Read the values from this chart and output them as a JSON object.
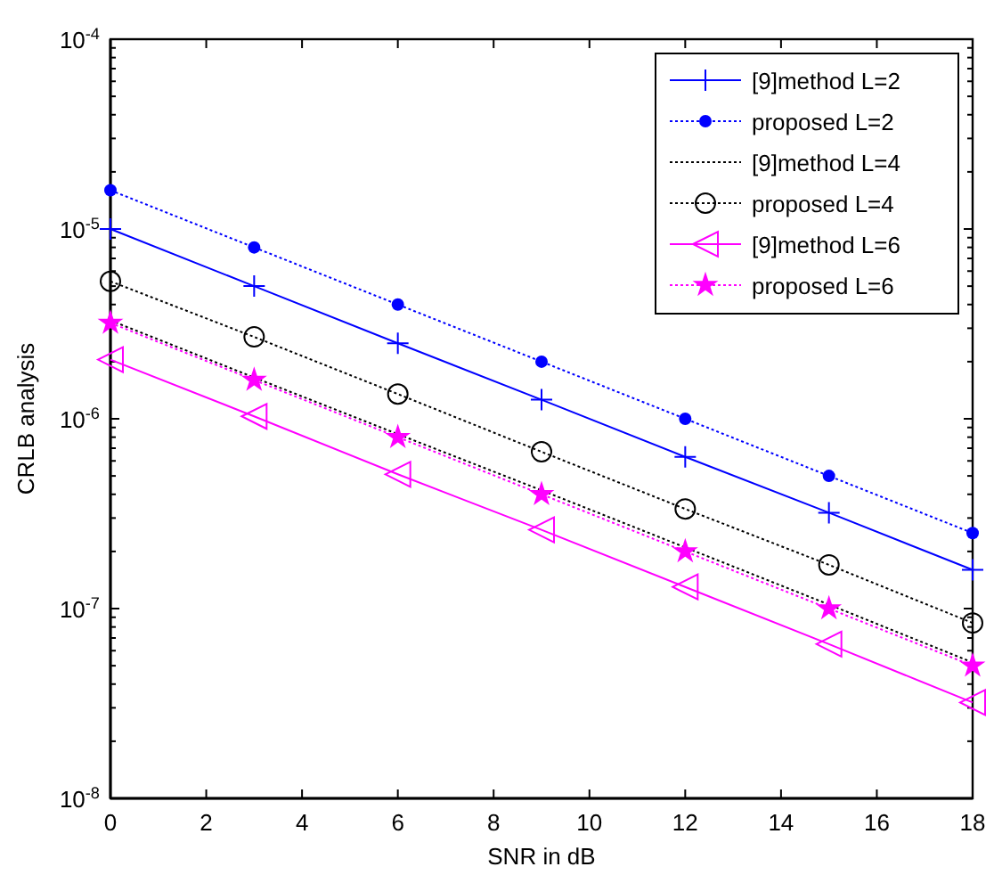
{
  "chart_data": {
    "type": "line",
    "xlabel": "SNR in dB",
    "ylabel": "CRLB analysis",
    "log": "y",
    "grid": false,
    "legend": "top right",
    "x": [
      0,
      3,
      6,
      9,
      12,
      15,
      18
    ],
    "xlim": [
      0,
      18
    ],
    "xticks": [
      0,
      2,
      4,
      6,
      8,
      10,
      12,
      14,
      16,
      18
    ],
    "ylim": [
      1e-08,
      0.0001
    ],
    "yticks": [
      {
        "value": 1e-08,
        "label": "10$^{-8}$"
      },
      {
        "value": 2e-08,
        "label": null
      },
      {
        "value": 3e-08,
        "label": null
      },
      {
        "value": 4e-08,
        "label": null
      },
      {
        "value": 5e-08,
        "label": null
      },
      {
        "value": 6e-08,
        "label": null
      },
      {
        "value": 7e-08,
        "label": null
      },
      {
        "value": 8e-08,
        "label": null
      },
      {
        "value": 9e-08,
        "label": null
      },
      {
        "value": 1e-07,
        "label": "10$^{-7}$"
      },
      {
        "value": 2e-07,
        "label": null
      },
      {
        "value": 3e-07,
        "label": null
      },
      {
        "value": 4e-07,
        "label": null
      },
      {
        "value": 5e-07,
        "label": null
      },
      {
        "value": 6e-07,
        "label": null
      },
      {
        "value": 7e-07,
        "label": null
      },
      {
        "value": 8e-07,
        "label": null
      },
      {
        "value": 9e-07,
        "label": null
      },
      {
        "value": 1e-06,
        "label": "10$^{-6}$"
      },
      {
        "value": 2e-06,
        "label": null
      },
      {
        "value": 3e-06,
        "label": null
      },
      {
        "value": 4e-06,
        "label": null
      },
      {
        "value": 5e-06,
        "label": null
      },
      {
        "value": 6e-06,
        "label": null
      },
      {
        "value": 7e-06,
        "label": null
      },
      {
        "value": 8e-06,
        "label": null
      },
      {
        "value": 9e-06,
        "label": null
      },
      {
        "value": 1e-05,
        "label": "10$^{-5}$"
      },
      {
        "value": 2e-05,
        "label": null
      },
      {
        "value": 3e-05,
        "label": null
      },
      {
        "value": 4e-05,
        "label": null
      },
      {
        "value": 5e-05,
        "label": null
      },
      {
        "value": 6e-05,
        "label": null
      },
      {
        "value": 7e-05,
        "label": null
      },
      {
        "value": 8e-05,
        "label": null
      },
      {
        "value": 9e-05,
        "label": null
      },
      {
        "value": 0.0001,
        "label": "10$^{-4}$"
      }
    ],
    "series": [
      {
        "name": "[9]method L=2",
        "color": "#0000ff",
        "marker": "cross",
        "line_style": "solid",
        "values": [
          1e-05,
          5e-06,
          2.5e-06,
          1.26e-06,
          6.3e-07,
          3.2e-07,
          1.6e-07
        ]
      },
      {
        "name": "proposed L=2",
        "color": "#0000ff",
        "marker": "circle",
        "line_style": "dotted",
        "values": [
          1.6e-05,
          8e-06,
          4e-06,
          2e-06,
          1e-06,
          5e-07,
          2.5e-07
        ]
      },
      {
        "name": "[9]method L=4",
        "color": "#000000",
        "marker": "none",
        "line_style": "dotted",
        "values": [
          3.3e-06,
          1.65e-06,
          8.3e-07,
          4.2e-07,
          2.1e-07,
          1.05e-07,
          5.2e-08
        ]
      },
      {
        "name": "proposed L=4",
        "color": "#000000",
        "marker": "circle",
        "line_style": "dotted",
        "values": [
          5.3e-06,
          2.7e-06,
          1.35e-06,
          6.7e-07,
          3.35e-07,
          1.7e-07,
          8.4e-08
        ]
      },
      {
        "name": "[9]method L=6",
        "color": "#ff00ff",
        "marker": "triangle",
        "line_style": "solid",
        "values": [
          2.05e-06,
          1.03e-06,
          5.1e-07,
          2.6e-07,
          1.3e-07,
          6.5e-08,
          3.2e-08
        ]
      },
      {
        "name": "proposed L=6",
        "color": "#ff00ff",
        "marker": "star",
        "line_style": "dotted",
        "values": [
          3.2e-06,
          1.6e-06,
          8e-07,
          4e-07,
          2e-07,
          1e-07,
          5e-08
        ]
      }
    ]
  }
}
